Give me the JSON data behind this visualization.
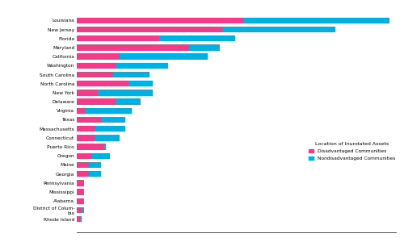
{
  "states": [
    "Louisiana",
    "New Jersey",
    "Florida",
    "Maryland",
    "California",
    "Washington",
    "South Carolina",
    "North Carolina",
    "New York",
    "Delaware",
    "Virginia",
    "Texas",
    "Massachusetts",
    "Connecticut",
    "Puerto Rico",
    "Oregon",
    "Maine",
    "Georgia",
    "Pennsylvania",
    "Mississippi",
    "Alabama",
    "District of Colum-\nbia",
    "Rhode Island"
  ],
  "disadvantaged": [
    55,
    48,
    27,
    37,
    14,
    13,
    12,
    17,
    7,
    13,
    3,
    8,
    6,
    6,
    9,
    5,
    4,
    4,
    2,
    2,
    2,
    1.5,
    1
  ],
  "nondisadvantaged": [
    48,
    37,
    25,
    10,
    29,
    17,
    12,
    8,
    18,
    8,
    15,
    8,
    10,
    8,
    0.5,
    6,
    4,
    4,
    0.5,
    0.5,
    0.5,
    1,
    0.5
  ],
  "disadvantaged_color": "#f03d8a",
  "nondisadvantaged_color": "#00b0e0",
  "legend_title": "Location of Inundated Assets",
  "legend_labels": [
    "Disadvantaged Communities",
    "Nondisadvantaged Communities"
  ],
  "background_color": "#ffffff",
  "xlim": [
    0,
    105
  ],
  "bar_height": 0.65,
  "ytick_fontsize": 4.2,
  "xtick_fontsize": 4.5
}
